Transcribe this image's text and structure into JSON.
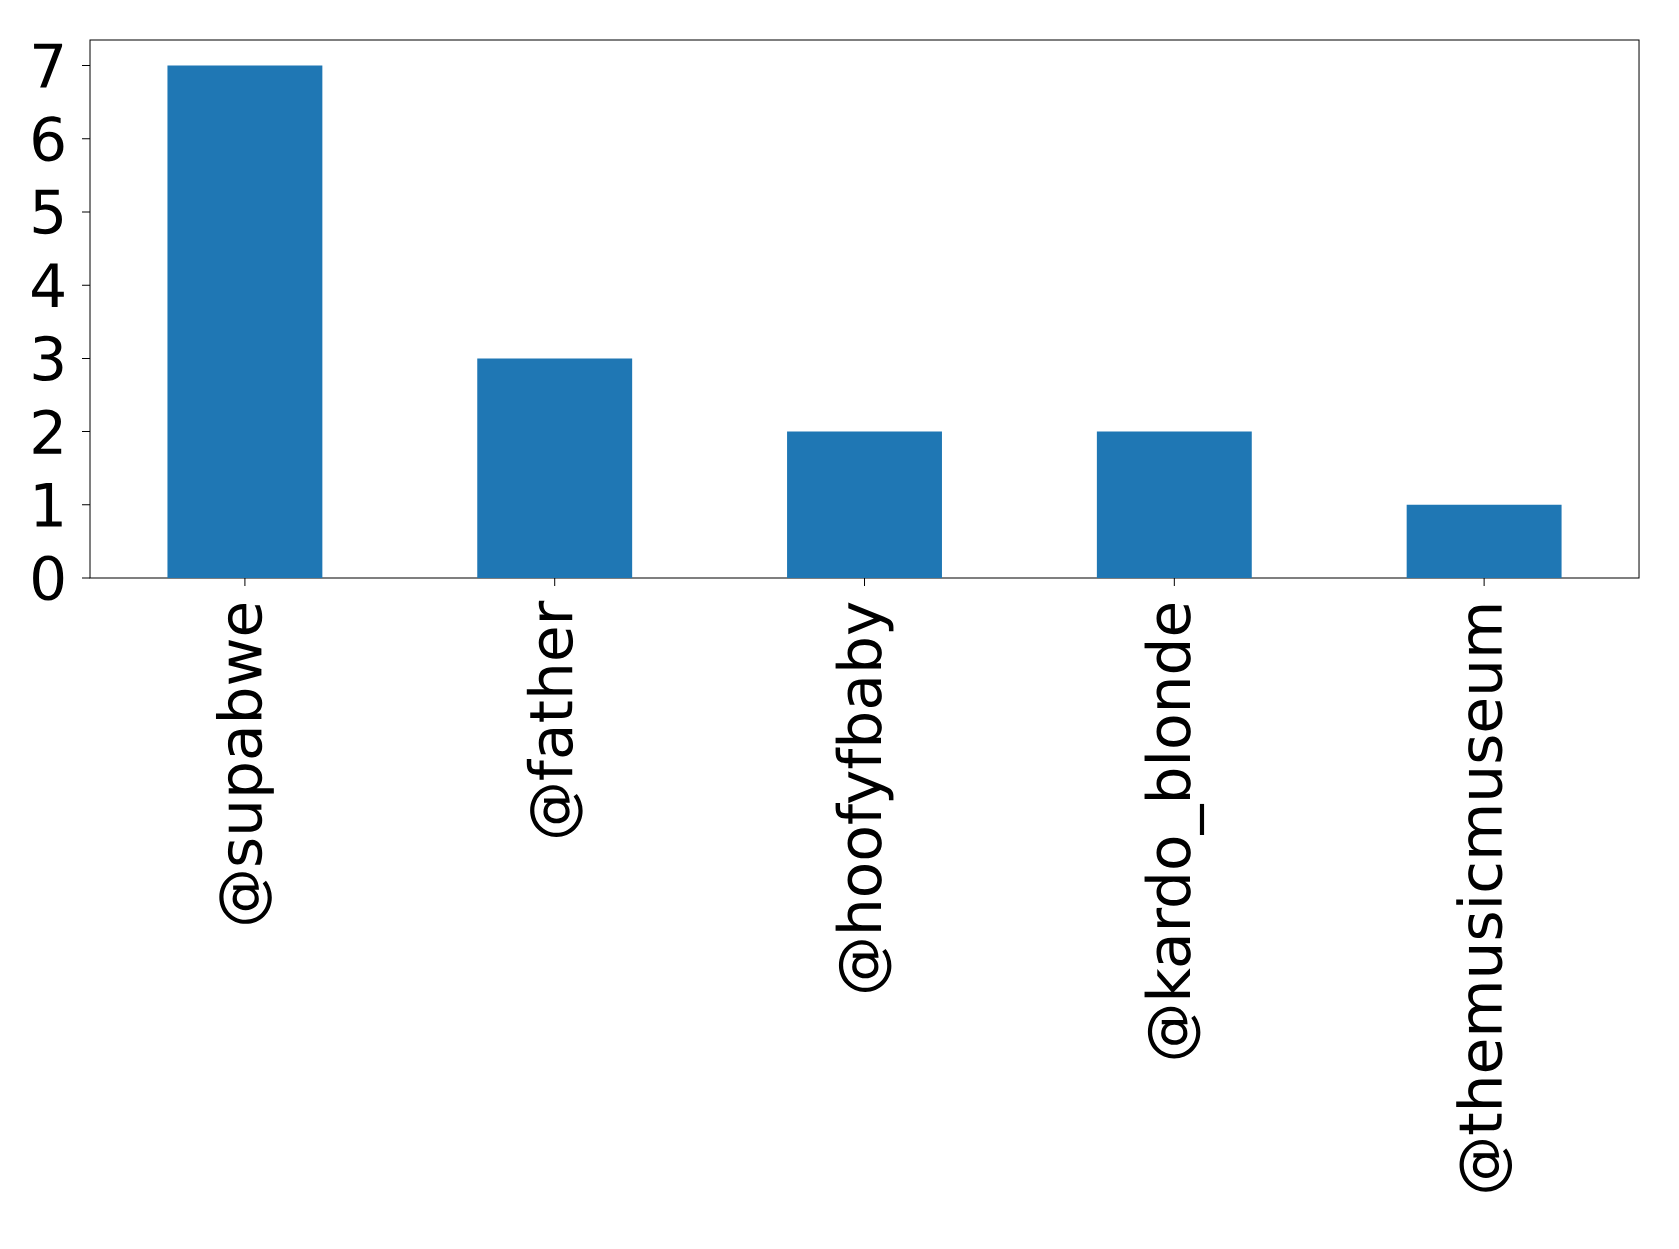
{
  "chart_data": {
    "type": "bar",
    "categories": [
      "@supabwe",
      "@father",
      "@hoofyfbaby",
      "@kardo_blonde",
      "@themusicmuseum"
    ],
    "values": [
      7,
      3,
      2,
      2,
      1
    ],
    "color": "#1f77b4",
    "ylim": [
      0,
      7.35
    ],
    "yticks": [
      0,
      1,
      2,
      3,
      4,
      5,
      6,
      7
    ],
    "grid": false
  }
}
